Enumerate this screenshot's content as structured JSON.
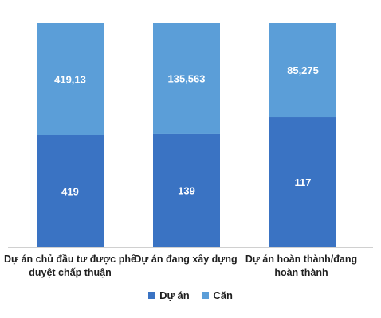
{
  "chart_data": {
    "type": "bar",
    "stacked": "percent",
    "categories": [
      "Dự án chủ đầu tư được phê duyệt chấp thuận",
      "Dự án đang xây dựng",
      "Dự án hoàn thành/đang hoàn thành"
    ],
    "series": [
      {
        "name": "Dự án",
        "values": [
          "419",
          "139",
          "117"
        ],
        "share": [
          0.5,
          0.5072,
          0.5815
        ]
      },
      {
        "name": "Căn",
        "values": [
          "419,13",
          "135,563",
          "85,275"
        ],
        "share": [
          0.5,
          0.4928,
          0.4185
        ]
      }
    ],
    "colors": {
      "Dự án": "#3a73c3",
      "Căn": "#5b9ed8"
    },
    "legend": "bottom",
    "grid": false
  }
}
